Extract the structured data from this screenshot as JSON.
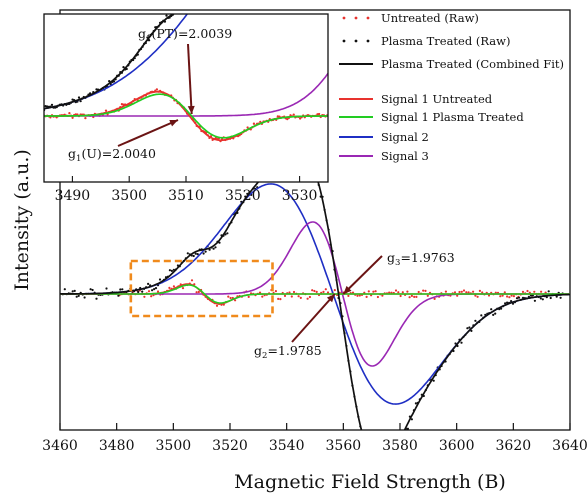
{
  "chart_data": [
    {
      "type": "line",
      "xlabel": "Magnetic Field Strength (B)",
      "ylabel": "Intensity (a.u.)",
      "xlim": [
        3460,
        3640
      ],
      "x_ticks": [
        "3460",
        "3480",
        "3500",
        "3520",
        "3540",
        "3560",
        "3580",
        "3600",
        "3620",
        "3640"
      ],
      "y_ticks_shown": false,
      "legend_position": "top-right",
      "legend": [
        {
          "label": "Untreated (Raw)",
          "color": "#e8322e",
          "style": "dots"
        },
        {
          "label": "Plasma Treated (Raw)",
          "color": "#111111",
          "style": "dots"
        },
        {
          "label": "Plasma Treated (Combined Fit)",
          "color": "#111111",
          "style": "line"
        },
        {
          "label": "Signal 1 Untreated",
          "color": "#e8322e",
          "style": "line"
        },
        {
          "label": "Signal 1 Plasma Treated",
          "color": "#22cc22",
          "style": "line"
        },
        {
          "label": "Signal 2",
          "color": "#1f2fc4",
          "style": "line"
        },
        {
          "label": "Signal 3",
          "color": "#9a28b4",
          "style": "line"
        }
      ],
      "signals": [
        {
          "name": "Signal 1 Untreated",
          "color": "#e8322e",
          "center": 3510.6,
          "width": 5.6,
          "amplitude": 0.05
        },
        {
          "name": "Signal 1 Plasma Treated",
          "color": "#22cc22",
          "center": 3511.0,
          "width": 5.6,
          "amplitude": 0.045
        },
        {
          "name": "Signal 2",
          "color": "#1f2fc4",
          "center": 3556.4,
          "width": 22,
          "amplitude": 0.55
        },
        {
          "name": "Signal 3",
          "color": "#9a28b4",
          "center": 3559.7,
          "width": 10.5,
          "amplitude": 0.36
        }
      ],
      "annotations": [
        {
          "base": "g",
          "sub": "3",
          "value": "=1.9763",
          "x": 3560
        },
        {
          "base": "g",
          "sub": "2",
          "value": "=1.9785",
          "x": 3557
        }
      ],
      "zoom_box": {
        "x_range": [
          3485,
          3535
        ],
        "color": "#f08a1c"
      }
    },
    {
      "type": "line",
      "panel": "inset",
      "xlim": [
        3485,
        3535
      ],
      "x_ticks": [
        "3490",
        "3500",
        "3510",
        "3520",
        "3530"
      ],
      "annotations": [
        {
          "base": "g",
          "sub": "1",
          "value": "(PT)=2.0039",
          "x": 3511.0
        },
        {
          "base": "g",
          "sub": "1",
          "value": "(U)=2.0040",
          "x": 3510.6
        }
      ]
    }
  ]
}
